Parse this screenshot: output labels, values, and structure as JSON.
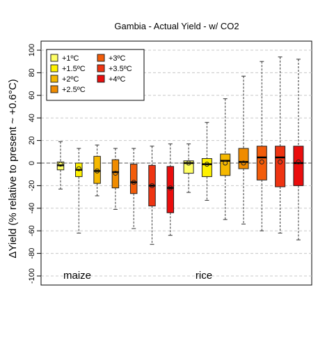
{
  "chart_data": {
    "type": "box",
    "title": "Gambia - Actual Yield - w/ CO2",
    "ylabel": "ΔYield (% relative to present ~ +0.6°C)",
    "xlabel": "",
    "ylim": [
      -100,
      100
    ],
    "yticks": [
      -100,
      -80,
      -60,
      -40,
      -20,
      0,
      20,
      40,
      60,
      80,
      100
    ],
    "grid": "horizontal dashed",
    "legend_position": "top-left",
    "legend": [
      {
        "label": "+1ºC",
        "color": "#FFFF66"
      },
      {
        "label": "+1.5ºC",
        "color": "#FFF200"
      },
      {
        "label": "+2ºC",
        "color": "#F5B800"
      },
      {
        "label": "+2.5ºC",
        "color": "#F08C00"
      },
      {
        "label": "+3ºC",
        "color": "#F25C0A"
      },
      {
        "label": "+3.5ºC",
        "color": "#EE3412"
      },
      {
        "label": "+4ºC",
        "color": "#EA0D0D"
      }
    ],
    "group_labels": [
      "maize",
      "rice"
    ],
    "series": [
      {
        "crop": "maize",
        "level": "+1ºC",
        "min": -23,
        "q1": -6,
        "median": -2,
        "q3": 1,
        "max": 19,
        "mean": -1
      },
      {
        "crop": "maize",
        "level": "+1.5ºC",
        "min": -62,
        "q1": -12,
        "median": -6,
        "q3": 0,
        "max": 13,
        "mean": -5
      },
      {
        "crop": "maize",
        "level": "+2ºC",
        "min": -29,
        "q1": -18,
        "median": -7,
        "q3": 6,
        "max": 16,
        "mean": -7
      },
      {
        "crop": "maize",
        "level": "+2.5ºC",
        "min": -41,
        "q1": -22,
        "median": -8,
        "q3": 3,
        "max": 13,
        "mean": -9
      },
      {
        "crop": "maize",
        "level": "+3ºC",
        "min": -58,
        "q1": -27,
        "median": -17,
        "q3": -1,
        "max": 13,
        "mean": -17
      },
      {
        "crop": "maize",
        "level": "+3.5ºC",
        "min": -72,
        "q1": -38,
        "median": -20,
        "q3": -2,
        "max": 15,
        "mean": -20
      },
      {
        "crop": "maize",
        "level": "+4ºC",
        "min": -64,
        "q1": -44,
        "median": -22,
        "q3": -3,
        "max": 17,
        "mean": -22
      },
      {
        "crop": "rice",
        "level": "+1ºC",
        "min": -26,
        "q1": -9,
        "median": 0,
        "q3": 2,
        "max": 17,
        "mean": 0
      },
      {
        "crop": "rice",
        "level": "+1.5ºC",
        "min": -33,
        "q1": -12,
        "median": -1,
        "q3": 4,
        "max": 36,
        "mean": -1
      },
      {
        "crop": "rice",
        "level": "+2ºC",
        "min": -50,
        "q1": -11,
        "median": 2,
        "q3": 8,
        "max": 57,
        "mean": 0
      },
      {
        "crop": "rice",
        "level": "+2.5ºC",
        "min": -54,
        "q1": -5,
        "median": 1,
        "q3": 13,
        "max": 77,
        "mean": 0
      },
      {
        "crop": "rice",
        "level": "+3ºC",
        "min": -60,
        "q1": -15,
        "median": 5,
        "q3": 15,
        "max": 90,
        "mean": 1
      },
      {
        "crop": "rice",
        "level": "+3.5ºC",
        "min": -62,
        "q1": -21,
        "median": 5,
        "q3": 15,
        "max": 94,
        "mean": 1
      },
      {
        "crop": "rice",
        "level": "+4ºC",
        "min": -68,
        "q1": -20,
        "median": 0,
        "q3": 15,
        "max": 92,
        "mean": 1
      }
    ]
  }
}
